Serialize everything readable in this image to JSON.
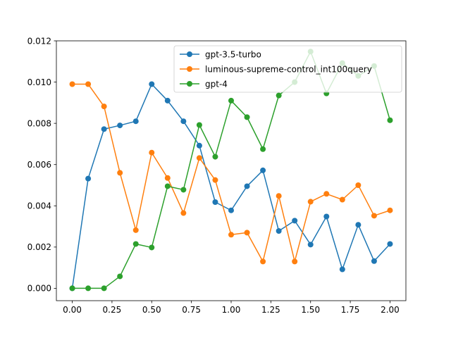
{
  "chart_data": {
    "type": "line",
    "title": "",
    "xlabel": "",
    "ylabel": "",
    "xlim": [
      -0.1,
      2.1
    ],
    "ylim": [
      -0.0006,
      0.012
    ],
    "xticks": [
      0.0,
      0.25,
      0.5,
      0.75,
      1.0,
      1.25,
      1.5,
      1.75,
      2.0
    ],
    "xtick_labels": [
      "0.00",
      "0.25",
      "0.50",
      "0.75",
      "1.00",
      "1.25",
      "1.50",
      "1.75",
      "2.00"
    ],
    "yticks": [
      0.0,
      0.002,
      0.004,
      0.006,
      0.008,
      0.01,
      0.012
    ],
    "ytick_labels": [
      "0.000",
      "0.002",
      "0.004",
      "0.006",
      "0.008",
      "0.010",
      "0.012"
    ],
    "grid": false,
    "legend_position": "top-right",
    "x": [
      0.0,
      0.1,
      0.2,
      0.3,
      0.4,
      0.5,
      0.6,
      0.7,
      0.8,
      0.9,
      1.0,
      1.1,
      1.2,
      1.3,
      1.4,
      1.5,
      1.6,
      1.7,
      1.8,
      1.9,
      2.0
    ],
    "series": [
      {
        "name": "gpt-3.5-turbo",
        "color": "#1f77b4",
        "values": [
          0.0,
          0.00532,
          0.00772,
          0.0079,
          0.0081,
          0.0099,
          0.0091,
          0.0081,
          0.00692,
          0.00418,
          0.00378,
          0.00495,
          0.00572,
          0.00278,
          0.00328,
          0.00212,
          0.00348,
          0.00092,
          0.00308,
          0.00132,
          0.00215
        ]
      },
      {
        "name": "luminous-supreme-control_int100query",
        "color": "#ff7f0e",
        "values": [
          0.0099,
          0.0099,
          0.00882,
          0.0056,
          0.00282,
          0.00658,
          0.00535,
          0.00365,
          0.00632,
          0.00525,
          0.0026,
          0.0027,
          0.0013,
          0.00448,
          0.0013,
          0.0042,
          0.00458,
          0.0043,
          0.005,
          0.00352,
          0.00378
        ]
      },
      {
        "name": "gpt-4",
        "color": "#2ca02c",
        "values": [
          0.0,
          0.0,
          0.0,
          0.00058,
          0.00215,
          0.00198,
          0.00495,
          0.00478,
          0.00792,
          0.00638,
          0.0091,
          0.0083,
          0.00675,
          0.00935,
          0.01,
          0.01148,
          0.00945,
          0.01092,
          0.0103,
          0.01078,
          0.00815
        ]
      }
    ]
  }
}
